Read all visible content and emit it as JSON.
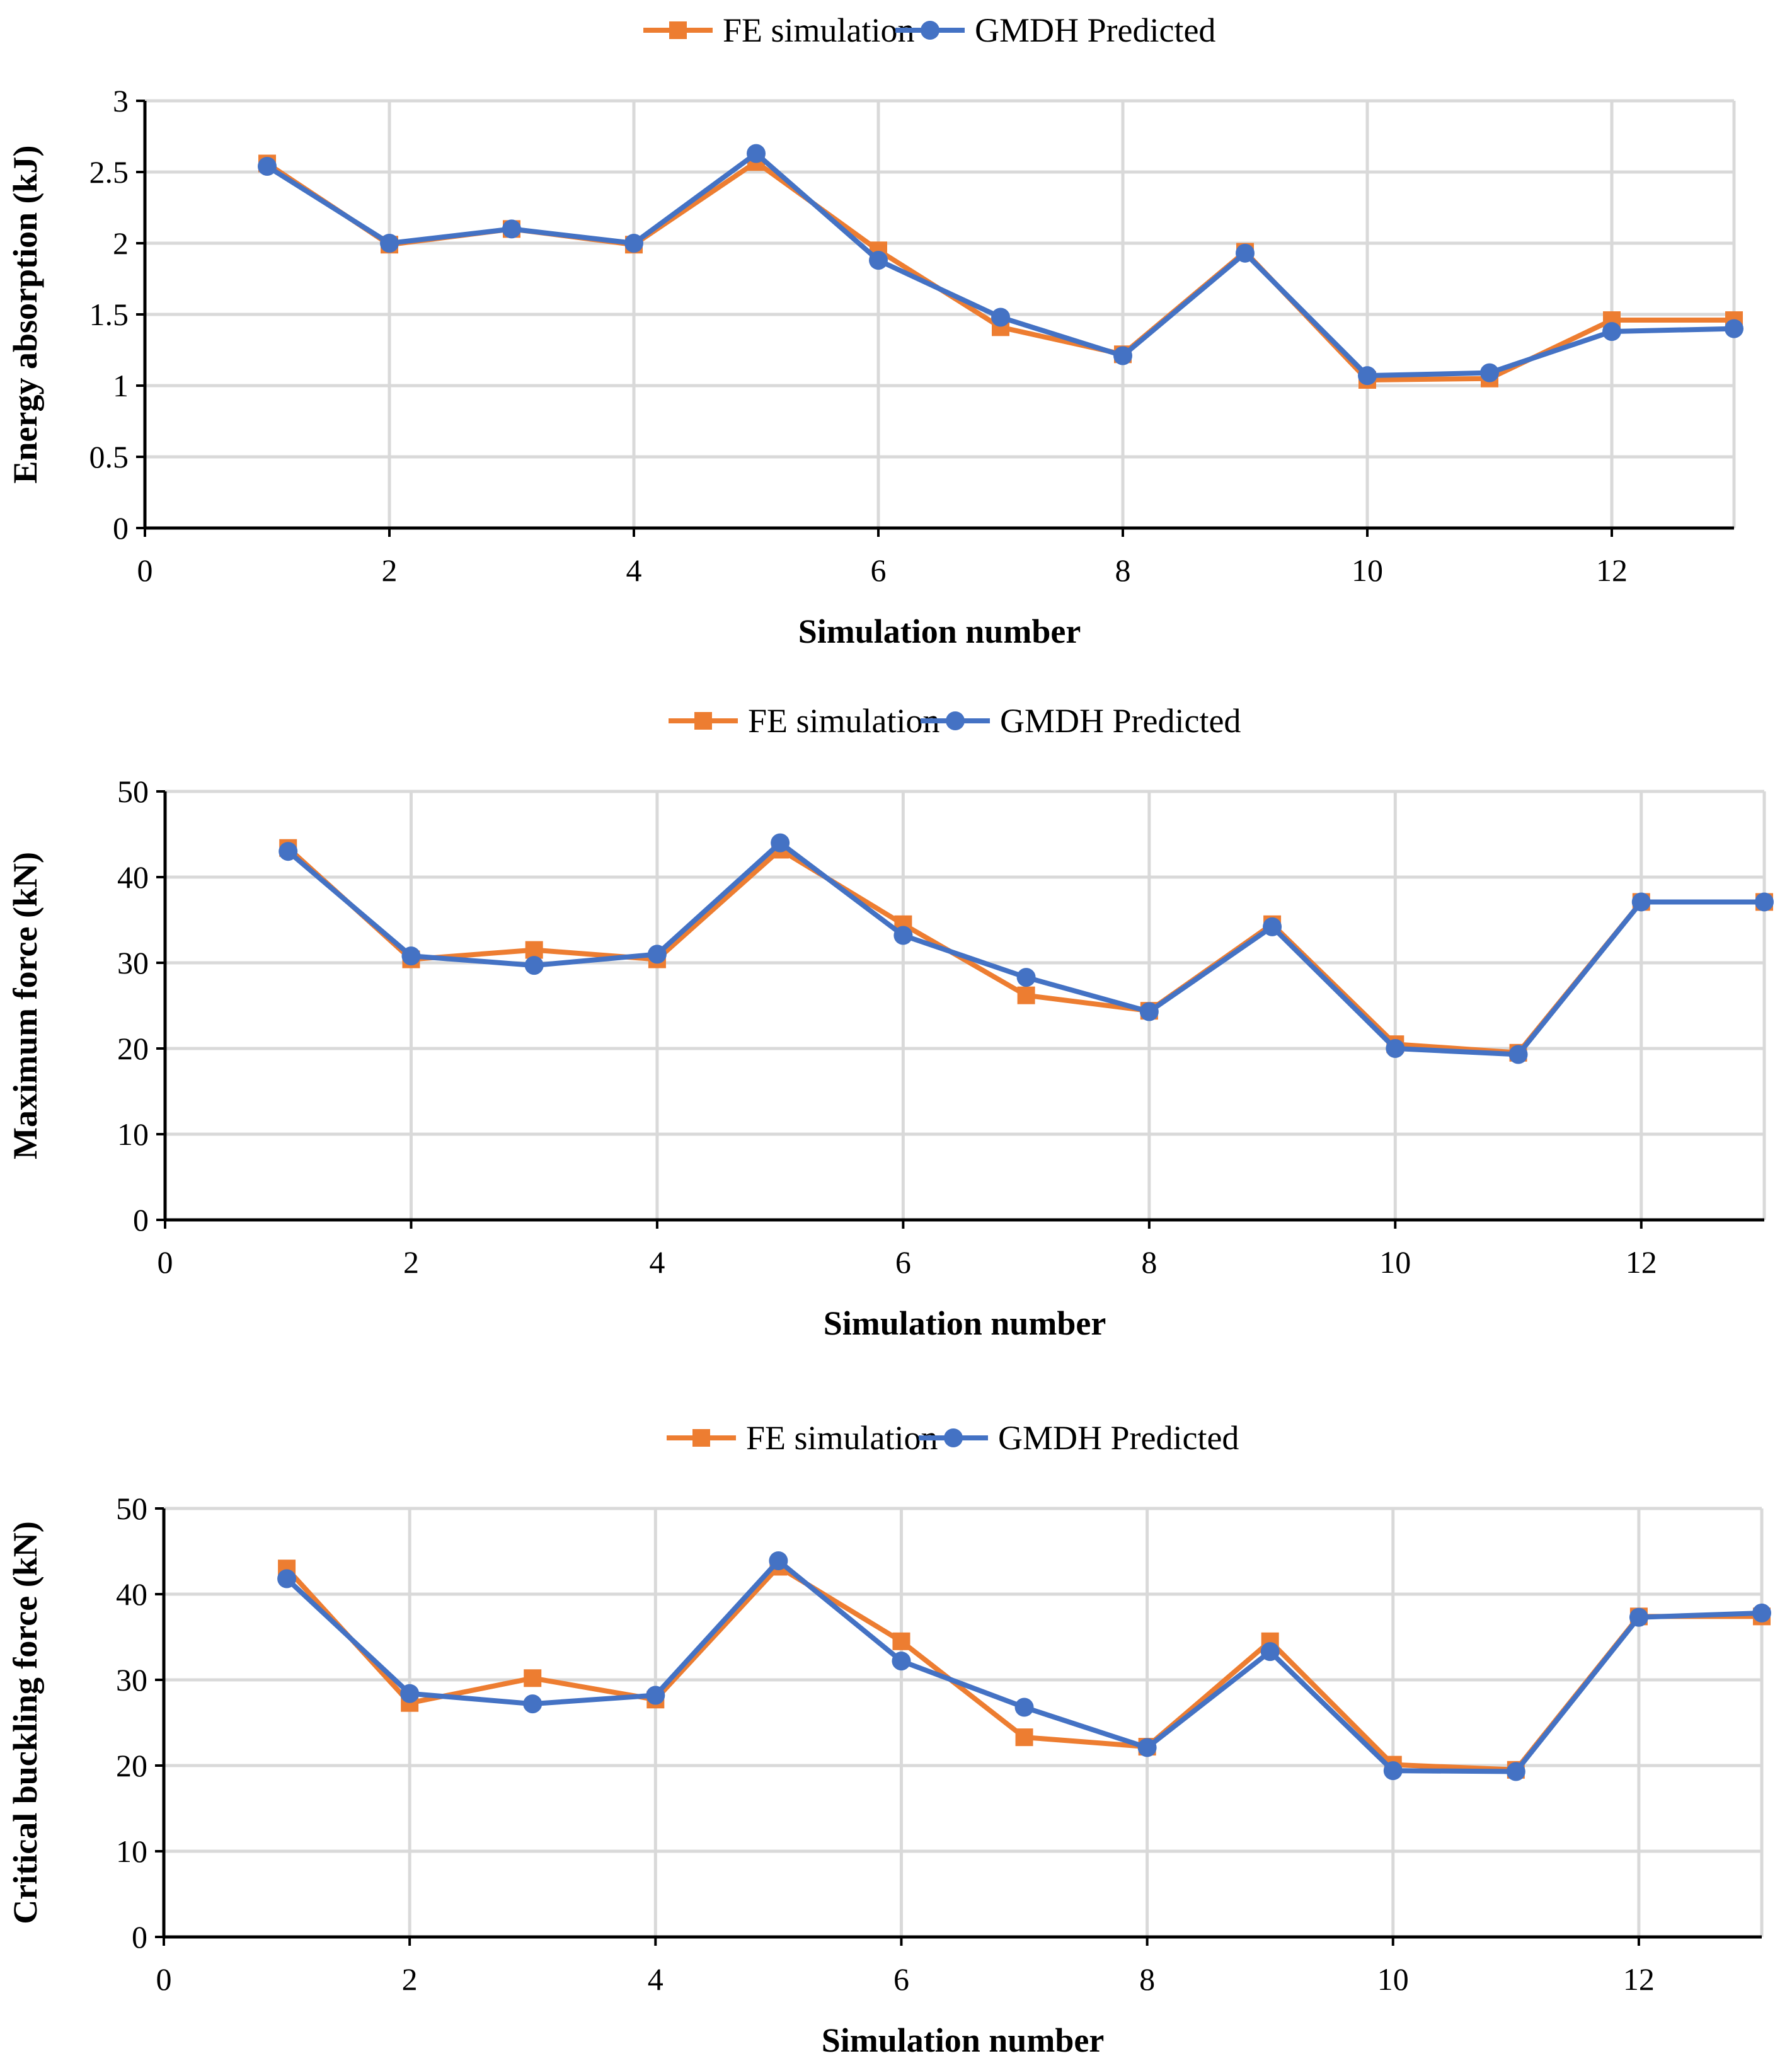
{
  "colors": {
    "fe": "#ED7D31",
    "gmdh": "#4472C4",
    "grid": "#D9D9D9",
    "axis": "#000000"
  },
  "chart_data": [
    {
      "type": "line",
      "xlabel": "Simulation number",
      "ylabel": "Energy absorption (kJ)",
      "xlim": [
        0,
        13
      ],
      "ylim": [
        0,
        3
      ],
      "x_ticks": [
        "0",
        "2",
        "4",
        "6",
        "8",
        "10",
        "12"
      ],
      "y_ticks": [
        "0",
        "0.5",
        "1",
        "1.5",
        "2",
        "2.5",
        "3"
      ],
      "grid": true,
      "legend_position": "top",
      "x": [
        1,
        2,
        3,
        4,
        5,
        6,
        7,
        8,
        9,
        10,
        11,
        12,
        13
      ],
      "series": [
        {
          "name": "FE simulation",
          "marker": "square",
          "values": [
            2.56,
            1.99,
            2.1,
            1.99,
            2.57,
            1.95,
            1.41,
            1.22,
            1.94,
            1.04,
            1.05,
            1.46,
            1.46
          ]
        },
        {
          "name": "GMDH Predicted",
          "marker": "circle",
          "values": [
            2.54,
            2.0,
            2.1,
            2.0,
            2.63,
            1.88,
            1.48,
            1.21,
            1.93,
            1.07,
            1.09,
            1.38,
            1.4
          ]
        }
      ]
    },
    {
      "type": "line",
      "xlabel": "Simulation number",
      "ylabel": "Maximum  force (kN)",
      "xlim": [
        0,
        13
      ],
      "ylim": [
        0,
        50
      ],
      "x_ticks": [
        "0",
        "2",
        "4",
        "6",
        "8",
        "10",
        "12"
      ],
      "y_ticks": [
        "0",
        "10",
        "20",
        "30",
        "40",
        "50"
      ],
      "grid": true,
      "legend_position": "top",
      "x": [
        1,
        2,
        3,
        4,
        5,
        6,
        7,
        8,
        9,
        10,
        11,
        12,
        13
      ],
      "series": [
        {
          "name": "FE simulation",
          "marker": "square",
          "values": [
            43.4,
            30.4,
            31.5,
            30.4,
            43.2,
            34.5,
            26.2,
            24.4,
            34.5,
            20.5,
            19.5,
            37.1,
            37.1
          ]
        },
        {
          "name": "GMDH Predicted",
          "marker": "circle",
          "values": [
            43.0,
            30.8,
            29.7,
            31.0,
            44.0,
            33.2,
            28.3,
            24.3,
            34.2,
            20.0,
            19.3,
            37.1,
            37.1
          ]
        }
      ]
    },
    {
      "type": "line",
      "xlabel": "Simulation number",
      "ylabel": "Critical buckling force (kN)",
      "xlim": [
        0,
        13
      ],
      "ylim": [
        0,
        50
      ],
      "x_ticks": [
        "0",
        "2",
        "4",
        "6",
        "8",
        "10",
        "12"
      ],
      "y_ticks": [
        "0",
        "10",
        "20",
        "30",
        "40",
        "50"
      ],
      "grid": true,
      "legend_position": "top",
      "x": [
        1,
        2,
        3,
        4,
        5,
        6,
        7,
        8,
        9,
        10,
        11,
        12,
        13
      ],
      "series": [
        {
          "name": "FE simulation",
          "marker": "square",
          "values": [
            43.0,
            27.3,
            30.2,
            27.7,
            43.2,
            34.5,
            23.3,
            22.2,
            34.5,
            20.1,
            19.5,
            37.4,
            37.4
          ]
        },
        {
          "name": "GMDH Predicted",
          "marker": "circle",
          "values": [
            41.8,
            28.4,
            27.2,
            28.2,
            43.9,
            32.2,
            26.8,
            22.1,
            33.3,
            19.4,
            19.3,
            37.3,
            37.8
          ]
        }
      ]
    }
  ]
}
